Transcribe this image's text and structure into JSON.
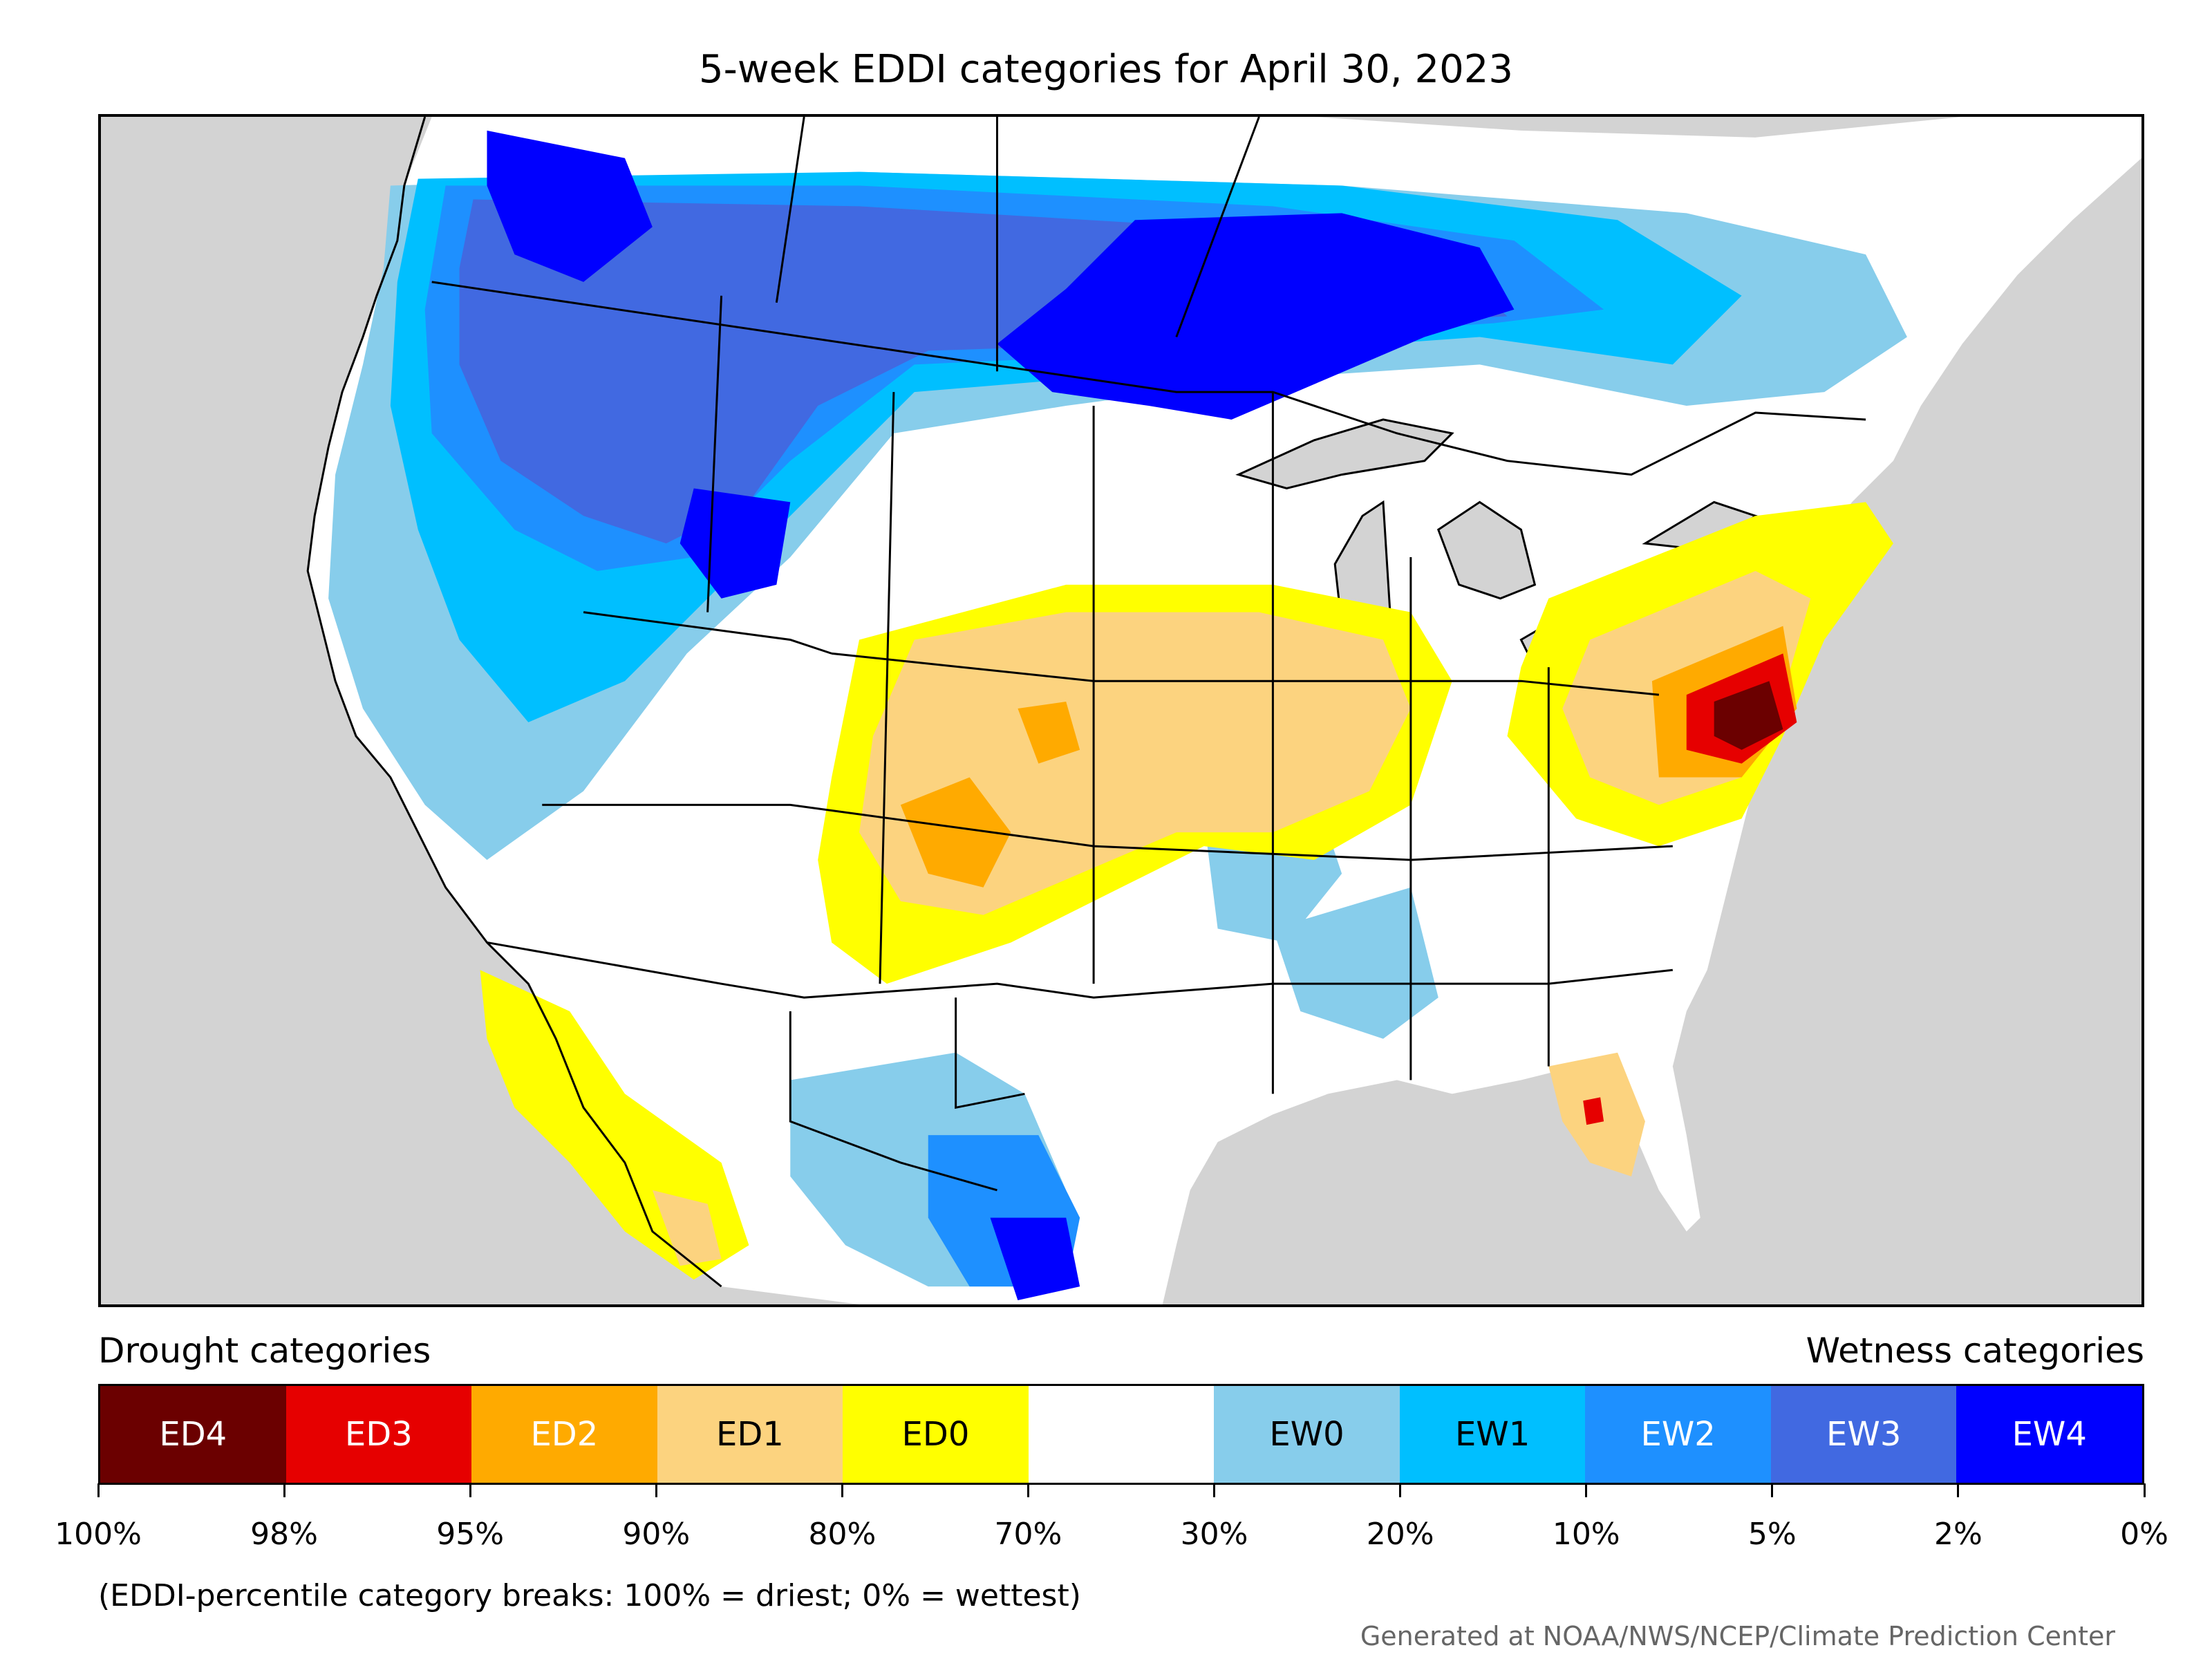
{
  "title": "5-week EDDI categories for April 30, 2023",
  "map": {
    "background_color": "#d3d3d3",
    "region": "United States and southern Canada",
    "boundary_color": "#000000"
  },
  "legend": {
    "left_caption": "Drought categories",
    "right_caption": "Wetness categories",
    "categories": [
      {
        "label": "ED4",
        "color": "#6b0000",
        "text_color": "#ffffff"
      },
      {
        "label": "ED3",
        "color": "#e60000",
        "text_color": "#ffffff"
      },
      {
        "label": "ED2",
        "color": "#ffaa00",
        "text_color": "#ffffff"
      },
      {
        "label": "ED1",
        "color": "#fcd37f",
        "text_color": "#000000"
      },
      {
        "label": "ED0",
        "color": "#ffff00",
        "text_color": "#000000"
      },
      {
        "label": "",
        "color": "#ffffff",
        "text_color": "#000000"
      },
      {
        "label": "EW0",
        "color": "#87cdeb",
        "text_color": "#000000"
      },
      {
        "label": "EW1",
        "color": "#00bfff",
        "text_color": "#000000"
      },
      {
        "label": "EW2",
        "color": "#1e90ff",
        "text_color": "#ffffff"
      },
      {
        "label": "EW3",
        "color": "#4169e1",
        "text_color": "#ffffff"
      },
      {
        "label": "EW4",
        "color": "#0000ff",
        "text_color": "#ffffff"
      }
    ],
    "tick_labels": [
      "100%",
      "98%",
      "95%",
      "90%",
      "80%",
      "70%",
      "30%",
      "20%",
      "10%",
      "5%",
      "2%",
      "0%"
    ]
  },
  "note": "(EDDI-percentile category breaks: 100% = driest; 0% = wettest)",
  "credit": "Generated at NOAA/NWS/NCEP/Climate Prediction Center"
}
